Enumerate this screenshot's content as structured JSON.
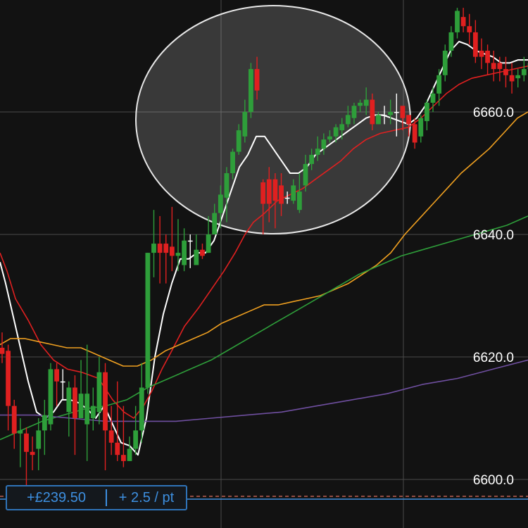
{
  "chart_data": {
    "type": "candlestick",
    "ylim": [
      6596.5,
      6682.5
    ],
    "y_ticks": [
      {
        "value": 6600,
        "label": "6600.0"
      },
      {
        "value": 6620,
        "label": "6620.0"
      },
      {
        "value": 6640,
        "label": "6640.0"
      },
      {
        "value": 6660,
        "label": "6660.0"
      }
    ],
    "up_color": "#2e9e3a",
    "down_color": "#e02020",
    "candles": [
      [
        6621.5,
        6620.5,
        6624,
        6619
      ],
      [
        6621,
        6612,
        6622,
        6608
      ],
      [
        6612,
        6607.5,
        6613,
        6605
      ],
      [
        6607.5,
        6608,
        6610,
        6602
      ],
      [
        6607.5,
        6604.5,
        6608.5,
        6599
      ],
      [
        6604.5,
        6604,
        6607,
        6601.5
      ],
      [
        6605,
        6608,
        6610,
        6601.5
      ],
      [
        6608,
        6610.5,
        6613,
        6604
      ],
      [
        6609,
        6618,
        6619,
        6608
      ],
      [
        6618,
        6616,
        6619,
        6612
      ],
      [
        6616,
        6616,
        6618,
        6613
      ],
      [
        6611,
        6615,
        6616,
        6607
      ],
      [
        6615,
        6610,
        6617,
        6604
      ],
      [
        6610,
        6614,
        6619.5,
        6610
      ],
      [
        6609,
        6614,
        6622,
        6603
      ],
      [
        6610,
        6612,
        6615,
        6608
      ],
      [
        6611,
        6617.5,
        6620,
        6609
      ],
      [
        6617.5,
        6608,
        6619,
        6601.5
      ],
      [
        6608,
        6606,
        6612,
        6604
      ],
      [
        6606,
        6604,
        6616,
        6603
      ],
      [
        6604,
        6603,
        6612,
        6602
      ],
      [
        6603,
        6605,
        6607,
        6603
      ],
      [
        6605,
        6608,
        6612,
        6604
      ],
      [
        6608,
        6615,
        6619,
        6606
      ],
      [
        6615,
        6637,
        6637,
        6614
      ],
      [
        6637,
        6638.5,
        6644,
        6633
      ],
      [
        6638.5,
        6637,
        6643,
        6632
      ],
      [
        6638.5,
        6637,
        6640,
        6632
      ],
      [
        6638,
        6636.5,
        6644.5,
        6634
      ],
      [
        6636.5,
        6637,
        6642.5,
        6634
      ],
      [
        6635,
        6639,
        6641,
        6634
      ],
      [
        6639,
        6639,
        6640,
        6634.5
      ],
      [
        6635,
        6637.5,
        6640,
        6635
      ],
      [
        6637.5,
        6636.5,
        6638.5,
        6636
      ],
      [
        6637,
        6640,
        6643,
        6637
      ],
      [
        6640,
        6643.5,
        6645,
        6640
      ],
      [
        6643.5,
        6646.5,
        6648,
        6641
      ],
      [
        6646,
        6650,
        6651,
        6642
      ],
      [
        6650,
        6653.5,
        6654,
        6649
      ],
      [
        6653.5,
        6657,
        6658,
        6653
      ],
      [
        6656,
        6660,
        6662,
        6655
      ],
      [
        6660,
        6667,
        6668,
        6659
      ],
      [
        6667,
        6663.5,
        6669,
        6662
      ],
      [
        6648.5,
        6645,
        6649,
        6640
      ],
      [
        6649,
        6645,
        6651,
        6642
      ],
      [
        6649,
        6645.5,
        6650,
        6641
      ],
      [
        6648,
        6645,
        6650,
        6643
      ],
      [
        6646,
        6646,
        6647,
        6645
      ],
      [
        6645.5,
        6648,
        6649,
        6645
      ],
      [
        6644,
        6647,
        6650,
        6643.5
      ],
      [
        6648,
        6651.5,
        6653,
        6647
      ],
      [
        6651.5,
        6653,
        6654,
        6650.5
      ],
      [
        6653,
        6654,
        6656,
        6652
      ],
      [
        6654,
        6655.5,
        6656.5,
        6653
      ],
      [
        6655.5,
        6656,
        6657,
        6655
      ],
      [
        6656,
        6657.5,
        6658,
        6655
      ],
      [
        6657,
        6658,
        6659,
        6655.5
      ],
      [
        6658,
        6659.5,
        6661,
        6657.5
      ],
      [
        6659,
        6661,
        6661.5,
        6658
      ],
      [
        6661,
        6661.5,
        6662,
        6660
      ],
      [
        6661,
        6662,
        6664,
        6659.5
      ],
      [
        6662,
        6658,
        6663,
        6657
      ],
      [
        6658,
        6659.5,
        6660,
        6658
      ],
      [
        6659.5,
        6659.5,
        6661,
        6658
      ],
      [
        6659.5,
        6660,
        6662,
        6658
      ],
      [
        6660,
        6660,
        6663,
        6656
      ],
      [
        6661,
        6659,
        6660,
        6657
      ],
      [
        6659.5,
        6658,
        6659,
        6656
      ],
      [
        6658,
        6655,
        6659,
        6654
      ],
      [
        6656,
        6659,
        6659.5,
        6655
      ],
      [
        6658.5,
        6661.5,
        6662,
        6657
      ],
      [
        6661.5,
        6663,
        6664,
        6660
      ],
      [
        6663,
        6666,
        6667,
        6661
      ],
      [
        6666,
        6670,
        6671,
        6665
      ],
      [
        6670,
        6673,
        6674,
        6669
      ],
      [
        6673,
        6676.5,
        6677,
        6672
      ],
      [
        6675.5,
        6674,
        6677,
        6673
      ],
      [
        6674,
        6673,
        6676,
        6671
      ],
      [
        6673,
        6669,
        6675,
        6668
      ],
      [
        6670,
        6669,
        6672,
        6667
      ],
      [
        6670,
        6668,
        6671,
        6666
      ],
      [
        6668,
        6667,
        6670,
        6665
      ],
      [
        6668,
        6667,
        6669,
        6665
      ],
      [
        6667,
        6666,
        6669,
        6664
      ],
      [
        6666,
        6665,
        6668,
        6663
      ],
      [
        6665.5,
        6666,
        6667,
        6664
      ],
      [
        6666,
        6667,
        6669,
        6665
      ],
      [
        6667,
        6668,
        6670,
        6665
      ]
    ],
    "series": [
      {
        "color": "#ffffff",
        "values": [
          [
            0,
            6635.5
          ],
          [
            8,
            6632
          ],
          [
            16,
            6628
          ],
          [
            28,
            6622
          ],
          [
            40,
            6616
          ],
          [
            52,
            6611
          ],
          [
            64,
            6610
          ],
          [
            76,
            6611
          ],
          [
            88,
            6613
          ],
          [
            100,
            6613
          ],
          [
            112,
            6612.5
          ],
          [
            124,
            6611.5
          ],
          [
            136,
            6610
          ],
          [
            148,
            6612
          ],
          [
            160,
            6609
          ],
          [
            172,
            6606
          ],
          [
            184,
            6605.5
          ],
          [
            196,
            6604
          ],
          [
            208,
            6610
          ],
          [
            220,
            6620
          ],
          [
            232,
            6627
          ],
          [
            244,
            6632
          ],
          [
            256,
            6636
          ],
          [
            268,
            6636
          ],
          [
            280,
            6637
          ],
          [
            292,
            6637
          ],
          [
            304,
            6639
          ],
          [
            316,
            6643
          ],
          [
            328,
            6647
          ],
          [
            340,
            6651
          ],
          [
            352,
            6653
          ],
          [
            364,
            6656
          ],
          [
            376,
            6656
          ],
          [
            388,
            6654
          ],
          [
            400,
            6652
          ],
          [
            412,
            6650
          ],
          [
            424,
            6650
          ],
          [
            436,
            6651
          ],
          [
            448,
            6653
          ],
          [
            460,
            6654
          ],
          [
            472,
            6655
          ],
          [
            484,
            6656
          ],
          [
            496,
            6657
          ],
          [
            508,
            6658
          ],
          [
            520,
            6659
          ],
          [
            532,
            6659.5
          ],
          [
            544,
            6659.5
          ],
          [
            556,
            6659
          ],
          [
            568,
            6658.5
          ],
          [
            580,
            6658
          ],
          [
            592,
            6659
          ],
          [
            604,
            6661
          ],
          [
            616,
            6664
          ],
          [
            628,
            6667
          ],
          [
            640,
            6670
          ],
          [
            652,
            6671.5
          ],
          [
            664,
            6671
          ],
          [
            676,
            6670
          ],
          [
            688,
            6669.5
          ],
          [
            700,
            6669
          ],
          [
            712,
            6668
          ],
          [
            724,
            6668
          ],
          [
            736,
            6668.5
          ],
          [
            750,
            6668.5
          ]
        ]
      },
      {
        "color": "#e02020",
        "values": [
          [
            0,
            6637
          ],
          [
            10,
            6634
          ],
          [
            22,
            6629.5
          ],
          [
            40,
            6626
          ],
          [
            58,
            6622
          ],
          [
            76,
            6619.5
          ],
          [
            96,
            6618
          ],
          [
            116,
            6617.5
          ],
          [
            140,
            6616.5
          ],
          [
            160,
            6613
          ],
          [
            176,
            6611
          ],
          [
            190,
            6610
          ],
          [
            204,
            6612
          ],
          [
            216,
            6614.5
          ],
          [
            230,
            6618
          ],
          [
            244,
            6621
          ],
          [
            262,
            6625
          ],
          [
            282,
            6628
          ],
          [
            300,
            6631
          ],
          [
            318,
            6634
          ],
          [
            334,
            6637
          ],
          [
            348,
            6640
          ],
          [
            360,
            6642
          ],
          [
            376,
            6643.5
          ],
          [
            394,
            6645.5
          ],
          [
            412,
            6646.5
          ],
          [
            430,
            6647.5
          ],
          [
            448,
            6649
          ],
          [
            466,
            6650.5
          ],
          [
            484,
            6652
          ],
          [
            502,
            6654
          ],
          [
            520,
            6655.5
          ],
          [
            540,
            6656.5
          ],
          [
            560,
            6657
          ],
          [
            580,
            6657.5
          ],
          [
            598,
            6659
          ],
          [
            616,
            6661
          ],
          [
            634,
            6663
          ],
          [
            652,
            6664.5
          ],
          [
            670,
            6665.5
          ],
          [
            690,
            6666
          ],
          [
            710,
            6666.5
          ],
          [
            730,
            6667
          ],
          [
            750,
            6667.5
          ]
        ]
      },
      {
        "color": "#f0a020",
        "values": [
          [
            0,
            6622
          ],
          [
            15,
            6623
          ],
          [
            35,
            6623
          ],
          [
            55,
            6622.5
          ],
          [
            75,
            6622
          ],
          [
            95,
            6621.5
          ],
          [
            115,
            6621.5
          ],
          [
            135,
            6620.5
          ],
          [
            155,
            6619.5
          ],
          [
            175,
            6618.5
          ],
          [
            195,
            6618.5
          ],
          [
            215,
            6619.5
          ],
          [
            235,
            6621
          ],
          [
            255,
            6622
          ],
          [
            275,
            6623
          ],
          [
            295,
            6624
          ],
          [
            315,
            6625.5
          ],
          [
            335,
            6626.5
          ],
          [
            355,
            6627.5
          ],
          [
            375,
            6628.5
          ],
          [
            395,
            6628.5
          ],
          [
            415,
            6629
          ],
          [
            435,
            6629.5
          ],
          [
            455,
            6630
          ],
          [
            475,
            6631
          ],
          [
            495,
            6632
          ],
          [
            515,
            6633.5
          ],
          [
            535,
            6635
          ],
          [
            555,
            6637
          ],
          [
            575,
            6640
          ],
          [
            595,
            6642.5
          ],
          [
            615,
            6645
          ],
          [
            635,
            6647.5
          ],
          [
            655,
            6650
          ],
          [
            675,
            6652
          ],
          [
            695,
            6654
          ],
          [
            715,
            6656.5
          ],
          [
            735,
            6659
          ],
          [
            750,
            6660
          ]
        ]
      },
      {
        "color": "#2e9e3a",
        "values": [
          [
            0,
            6606.5
          ],
          [
            30,
            6608
          ],
          [
            60,
            6609.5
          ],
          [
            90,
            6610.5
          ],
          [
            120,
            6611.5
          ],
          [
            150,
            6612
          ],
          [
            180,
            6613
          ],
          [
            210,
            6615
          ],
          [
            240,
            6616.5
          ],
          [
            270,
            6618
          ],
          [
            300,
            6619.5
          ],
          [
            330,
            6621.5
          ],
          [
            360,
            6623.5
          ],
          [
            390,
            6625.5
          ],
          [
            420,
            6627.5
          ],
          [
            450,
            6629.5
          ],
          [
            480,
            6631.5
          ],
          [
            510,
            6633.5
          ],
          [
            540,
            6635
          ],
          [
            570,
            6636.5
          ],
          [
            600,
            6637.5
          ],
          [
            630,
            6638.5
          ],
          [
            660,
            6639.5
          ],
          [
            690,
            6640.5
          ],
          [
            720,
            6641.5
          ],
          [
            750,
            6643
          ]
        ]
      },
      {
        "color": "#6f4fa0",
        "values": [
          [
            0,
            6610.5
          ],
          [
            50,
            6610.5
          ],
          [
            100,
            6610
          ],
          [
            150,
            6609.5
          ],
          [
            200,
            6609.5
          ],
          [
            250,
            6609.5
          ],
          [
            300,
            6610
          ],
          [
            350,
            6610.5
          ],
          [
            400,
            6611
          ],
          [
            450,
            6612
          ],
          [
            500,
            6613
          ],
          [
            550,
            6614
          ],
          [
            600,
            6615.5
          ],
          [
            650,
            6616.5
          ],
          [
            700,
            6618
          ],
          [
            750,
            6619.5
          ]
        ]
      }
    ],
    "highlight_ellipse": {
      "cx": 6640,
      "cy_value": 6656,
      "rx": 195,
      "ry": 162
    },
    "vertical_gridlines_px": [
      314,
      573
    ],
    "order_line": {
      "value": 6598
    },
    "price_line": {
      "value": 6597.5
    }
  },
  "pnl": {
    "value": "+£239.50",
    "rate": "+ 2.5 / pt"
  }
}
